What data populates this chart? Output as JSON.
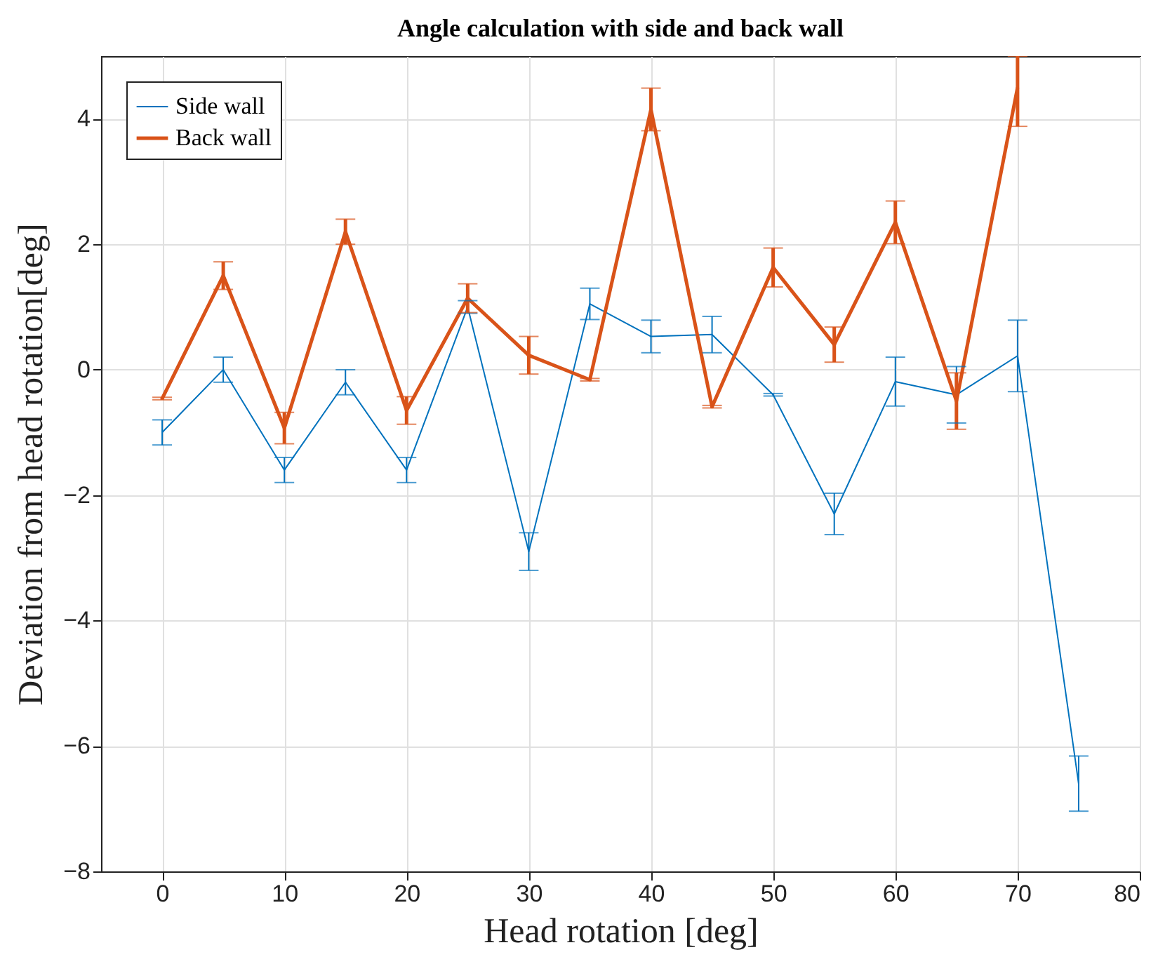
{
  "chart_data": {
    "type": "line",
    "title": "Angle calculation with side and back wall",
    "xlabel": "Head rotation [deg]",
    "ylabel": "Deviation from head rotation[deg]",
    "x": [
      0,
      5,
      10,
      15,
      20,
      25,
      30,
      35,
      40,
      45,
      50,
      55,
      60,
      65,
      70,
      75
    ],
    "series": [
      {
        "name": "Side wall",
        "color": "#0072bd",
        "values": [
          -1.0,
          0.0,
          -1.6,
          -0.2,
          -1.6,
          1.0,
          -2.9,
          1.05,
          0.53,
          0.56,
          -0.4,
          -2.3,
          -0.19,
          -0.4,
          0.22,
          -6.6
        ],
        "errors": [
          0.2,
          0.2,
          0.2,
          0.2,
          0.2,
          0.1,
          0.3,
          0.25,
          0.26,
          0.29,
          0.02,
          0.33,
          0.39,
          0.45,
          0.57,
          0.44
        ]
      },
      {
        "name": "Back wall",
        "color": "#d95319",
        "values": [
          -0.46,
          1.5,
          -0.93,
          2.2,
          -0.65,
          1.14,
          0.23,
          -0.16,
          4.15,
          -0.59,
          1.63,
          0.4,
          2.35,
          -0.5,
          4.5,
          null
        ],
        "errors": [
          0.02,
          0.22,
          0.25,
          0.2,
          0.22,
          0.23,
          0.3,
          0.02,
          0.34,
          0.02,
          0.31,
          0.28,
          0.34,
          0.45,
          [
            3.88,
            5.0
          ],
          null
        ]
      }
    ],
    "xlim": [
      -5,
      80
    ],
    "xticks": [
      0,
      10,
      20,
      30,
      40,
      50,
      60,
      70,
      80
    ],
    "ylim": [
      -8,
      5
    ],
    "yticks": [
      -8,
      -6,
      -4,
      -2,
      0,
      2,
      4
    ],
    "grid": true,
    "legend": "top left",
    "marker": "none",
    "line_style": "solid"
  }
}
